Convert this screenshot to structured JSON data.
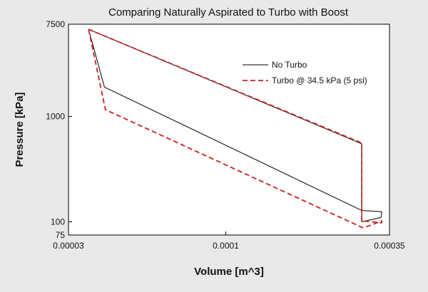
{
  "chart_data": {
    "type": "line",
    "title": "Comparing Naturally Aspirated to Turbo with Boost",
    "xlabel": "Volume [m^3]",
    "ylabel": "Pressure [kPa]",
    "xscale": "log",
    "yscale": "log",
    "xlim": [
      3e-05,
      0.00035
    ],
    "ylim": [
      75,
      7500
    ],
    "xticks": [
      {
        "value": 3e-05,
        "label": "0.00003"
      },
      {
        "value": 0.0001,
        "label": "0.0001"
      },
      {
        "value": 0.00035,
        "label": "0.00035"
      }
    ],
    "yticks": [
      {
        "value": 7500,
        "label": "7500"
      },
      {
        "value": 1000,
        "label": "1000"
      },
      {
        "value": 100,
        "label": "100"
      },
      {
        "value": 75,
        "label": "75"
      }
    ],
    "grid": false,
    "legend_position": "top-right",
    "series": [
      {
        "name": "No Turbo",
        "color": "#000000",
        "style": "solid",
        "x": [
          3.5e-05,
          3.95e-05,
          0.00028,
          0.000283,
          0.000285,
          0.00033,
          0.000328,
          0.000283,
          0.000283,
          0.000283,
          3.5e-05
        ],
        "y": [
          6700,
          1900,
          130,
          129,
          128,
          125,
          110,
          100,
          200,
          550,
          6700
        ]
      },
      {
        "name": "Turbo @ 34.5 kPa (5 psi)",
        "color": "#cc1f1f",
        "style": "dashed",
        "x": [
          3.5e-05,
          3.98e-05,
          0.000285,
          0.0003,
          0.00033,
          0.00033,
          0.000283,
          0.000283,
          0.000283,
          3.5e-05
        ],
        "y": [
          6700,
          1160,
          88,
          92,
          102,
          98,
          102,
          300,
          560,
          6700
        ]
      }
    ]
  }
}
